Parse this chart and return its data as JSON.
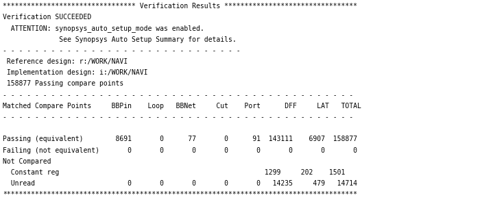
{
  "bg_color": "#ffffff",
  "text_color": "#000000",
  "font_family": "monospace",
  "fontsize": 7.0,
  "lines": [
    "********************************* Verification Results *********************************",
    "Verification SUCCEEDED",
    "  ATTENTION: synopsys_auto_setup_mode was enabled.",
    "              See Synopsys Auto Setup Summary for details.",
    "- - - - - - - - - - - - - - - - - - - - - - - - - - - - - -",
    " Reference design: r:/WORK/NAVI",
    " Implementation design: i:/WORK/NAVI",
    " 158877 Passing compare points",
    "- - - - - - - - - - - - - - - - - - - - - - - - - - - - - - - - - - - - - - - - - - - -",
    "Matched Compare Points     BBPin    Loop   BBNet     Cut    Port      DFF     LAT   TOTAL",
    "- - - - - - - - - - - - - - - - - - - - - - - - - - - - - - - - - - - - - - - - - - - -",
    "",
    "Passing (equivalent)        8691       0      77       0      91  143111    6907  158877",
    "Failing (not equivalent)       0       0       0       0       0       0       0       0",
    "Not Compared",
    "  Constant reg                                                   1299     202    1501",
    "  Unread                       0       0       0       0       0   14235     479   14714",
    "****************************************************************************************"
  ]
}
